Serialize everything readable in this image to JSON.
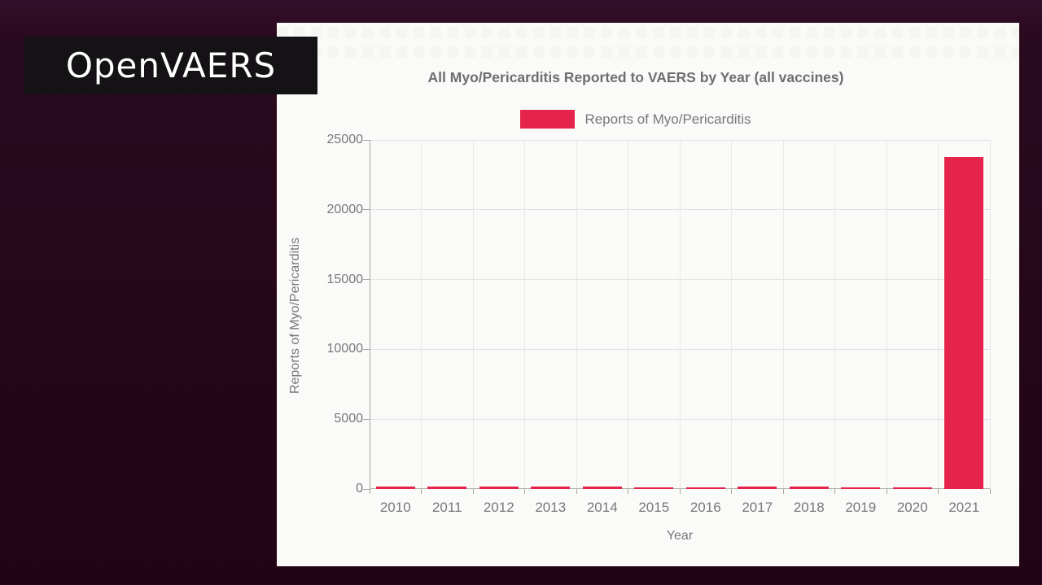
{
  "logo": {
    "text": "OpenVAERS"
  },
  "colors": {
    "background": "#250719",
    "panel": "#fafaf8",
    "logo_bg": "#141214",
    "logo_text": "#ffffff",
    "bar": "#e4244a",
    "title_text": "#6d6e71",
    "axis_text": "#77787b",
    "gridline": "#e3e3e3",
    "axis_line": "#a8a8a8"
  },
  "chart_data": {
    "type": "bar",
    "title": "All Myo/Pericarditis Reported to VAERS by Year (all vaccines)",
    "legend": "Reports of Myo/Pericarditis",
    "xlabel": "Year",
    "ylabel": "Reports of Myo/Pericarditis",
    "categories": [
      "2010",
      "2011",
      "2012",
      "2013",
      "2014",
      "2015",
      "2016",
      "2017",
      "2018",
      "2019",
      "2020",
      "2021"
    ],
    "values": [
      160,
      150,
      175,
      175,
      160,
      100,
      120,
      155,
      150,
      140,
      110,
      23800
    ],
    "ylim": [
      0,
      25000
    ],
    "yticks": [
      0,
      5000,
      10000,
      15000,
      20000,
      25000
    ],
    "grid": true,
    "legend_position": "top",
    "bar_color": "#e4244a"
  }
}
